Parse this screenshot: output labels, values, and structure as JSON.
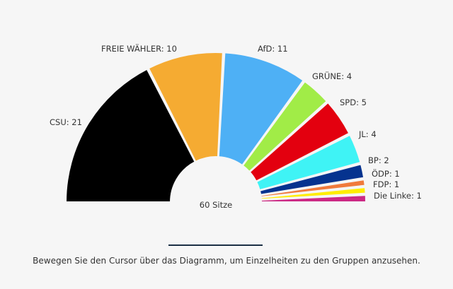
{
  "chart_data": {
    "type": "pie",
    "subtype": "parliament-semicircle",
    "total_label": "60 Sitze",
    "total": 60,
    "series": [
      {
        "name": "CSU",
        "label": "CSU: 21",
        "value": 21,
        "color": "#000000"
      },
      {
        "name": "FREIE WÄHLER",
        "label": "FREIE WÄHLER: 10",
        "value": 10,
        "color": "#f5ab32"
      },
      {
        "name": "AfD",
        "label": "AfD: 11",
        "value": 11,
        "color": "#4eb0f5"
      },
      {
        "name": "GRÜNE",
        "label": "GRÜNE: 4",
        "value": 4,
        "color": "#a1ec47"
      },
      {
        "name": "SPD",
        "label": "SPD: 5",
        "value": 5,
        "color": "#e3000f"
      },
      {
        "name": "JL",
        "label": "JL: 4",
        "value": 4,
        "color": "#3ff3f5"
      },
      {
        "name": "BP",
        "label": "BP: 2",
        "value": 2,
        "color": "#05338f"
      },
      {
        "name": "ÖDP",
        "label": "ÖDP: 1",
        "value": 1,
        "color": "#f07a3c"
      },
      {
        "name": "FDP",
        "label": "FDP: 1",
        "value": 1,
        "color": "#ffed00"
      },
      {
        "name": "Die Linke",
        "label": "Die Linke: 1",
        "value": 1,
        "color": "#cc2a85"
      }
    ]
  },
  "footer": {
    "hint": "Bewegen Sie den Cursor über das Diagramm, um Einzelheiten zu den Gruppen anzusehen."
  }
}
